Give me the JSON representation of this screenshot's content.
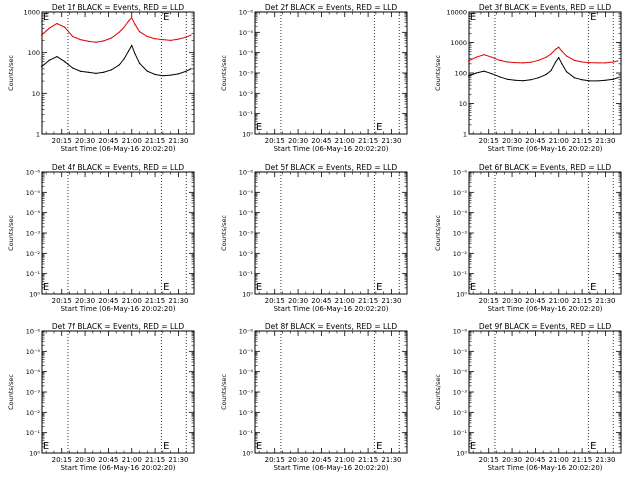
{
  "colors": {
    "events": "#000000",
    "lld": "#e00000",
    "background": "#ffffff",
    "axes": "#000000"
  },
  "x_tick_labels": [
    "20:15",
    "20:30",
    "20:45",
    "21:00",
    "21:15",
    "21:30"
  ],
  "x_axis_label": "Start Time (06-May-16 20:02:20)",
  "y_axis_label": "Counts/sec",
  "marker_label": "E",
  "chart_data": [
    {
      "type": "line",
      "title": "Det 1f BLACK = Events, RED = LLD",
      "ylabel": "Counts/sec",
      "xlabel": "Start Time (06-May-16 20:02:20)",
      "yscale": "log",
      "ylim": [
        1,
        1000
      ],
      "y_tick_labels": [
        "1",
        "10",
        "100",
        "1000"
      ],
      "x_ticks": [
        "20:15",
        "20:30",
        "20:45",
        "21:00",
        "21:15",
        "21:30"
      ],
      "vertical_dotted_lines": [
        "20:19",
        "21:19",
        "21:35"
      ],
      "series": [
        {
          "name": "LLD",
          "color": "#e00000",
          "x": [
            "20:02",
            "20:07",
            "20:12",
            "20:17",
            "20:22",
            "20:27",
            "20:32",
            "20:37",
            "20:42",
            "20:47",
            "20:52",
            "20:55",
            "20:58",
            "21:00",
            "21:02",
            "21:05",
            "21:10",
            "21:15",
            "21:20",
            "21:25",
            "21:30",
            "21:35",
            "21:38"
          ],
          "y": [
            270,
            400,
            520,
            420,
            250,
            210,
            190,
            180,
            195,
            230,
            320,
            420,
            600,
            720,
            500,
            330,
            250,
            220,
            210,
            200,
            215,
            240,
            270
          ]
        },
        {
          "name": "Events",
          "color": "#000000",
          "x": [
            "20:02",
            "20:07",
            "20:12",
            "20:17",
            "20:22",
            "20:27",
            "20:32",
            "20:37",
            "20:42",
            "20:47",
            "20:52",
            "20:55",
            "20:58",
            "21:00",
            "21:02",
            "21:05",
            "21:10",
            "21:15",
            "21:20",
            "21:25",
            "21:30",
            "21:35",
            "21:38"
          ],
          "y": [
            45,
            65,
            80,
            60,
            42,
            35,
            33,
            31,
            33,
            38,
            50,
            70,
            110,
            150,
            95,
            55,
            35,
            29,
            27,
            28,
            30,
            35,
            40
          ]
        }
      ]
    },
    {
      "type": "line",
      "title": "Det 2f BLACK = Events, RED = LLD",
      "ylabel": "Counts/sec",
      "xlabel": "Start Time (06-May-16 20:02:20)",
      "yscale": "log",
      "ylim": [
        1,
        1e-06
      ],
      "y_tick_labels": [
        "10⁰",
        "10⁻¹",
        "10⁻²",
        "10⁻³",
        "10⁻⁴",
        "10⁻⁵",
        "10⁻⁶"
      ],
      "x_ticks": [
        "20:15",
        "20:30",
        "20:45",
        "21:00",
        "21:15",
        "21:30"
      ],
      "vertical_dotted_lines": [
        "20:19",
        "21:19",
        "21:35"
      ],
      "series": []
    },
    {
      "type": "line",
      "title": "Det 3f BLACK = Events, RED = LLD",
      "ylabel": "Counts/sec",
      "xlabel": "Start Time (06-May-16 20:02:20)",
      "yscale": "log",
      "ylim": [
        1,
        10000
      ],
      "y_tick_labels": [
        "1",
        "10",
        "100",
        "1000",
        "10000"
      ],
      "x_ticks": [
        "20:15",
        "20:30",
        "20:45",
        "21:00",
        "21:15",
        "21:30"
      ],
      "vertical_dotted_lines": [
        "20:19",
        "21:19",
        "21:35"
      ],
      "series": [
        {
          "name": "LLD",
          "color": "#e00000",
          "x": [
            "20:02",
            "20:07",
            "20:12",
            "20:17",
            "20:22",
            "20:27",
            "20:32",
            "20:37",
            "20:42",
            "20:47",
            "20:52",
            "20:55",
            "20:58",
            "21:00",
            "21:02",
            "21:05",
            "21:10",
            "21:15",
            "21:20",
            "21:25",
            "21:30",
            "21:35",
            "21:38"
          ],
          "y": [
            250,
            330,
            400,
            330,
            260,
            230,
            220,
            215,
            225,
            260,
            330,
            420,
            600,
            700,
            520,
            360,
            260,
            230,
            220,
            215,
            215,
            230,
            250
          ]
        },
        {
          "name": "Events",
          "color": "#000000",
          "x": [
            "20:02",
            "20:07",
            "20:12",
            "20:17",
            "20:22",
            "20:27",
            "20:32",
            "20:37",
            "20:42",
            "20:47",
            "20:52",
            "20:55",
            "20:58",
            "21:00",
            "21:02",
            "21:05",
            "21:10",
            "21:15",
            "21:20",
            "21:25",
            "21:30",
            "21:35",
            "21:38"
          ],
          "y": [
            80,
            100,
            115,
            95,
            75,
            62,
            58,
            56,
            60,
            70,
            90,
            120,
            230,
            320,
            200,
            110,
            70,
            60,
            55,
            55,
            58,
            62,
            70
          ]
        }
      ]
    },
    {
      "type": "line",
      "title": "Det 4f BLACK = Events, RED = LLD",
      "ylabel": "Counts/sec",
      "xlabel": "Start Time (06-May-16 20:02:20)",
      "yscale": "log",
      "ylim": [
        1,
        1e-06
      ],
      "y_tick_labels": [
        "10⁰",
        "10⁻¹",
        "10⁻²",
        "10⁻³",
        "10⁻⁴",
        "10⁻⁵",
        "10⁻⁶"
      ],
      "x_ticks": [
        "20:15",
        "20:30",
        "20:45",
        "21:00",
        "21:15",
        "21:30"
      ],
      "vertical_dotted_lines": [
        "20:19",
        "21:19",
        "21:35"
      ],
      "series": []
    },
    {
      "type": "line",
      "title": "Det 5f BLACK = Events, RED = LLD",
      "ylabel": "Counts/sec",
      "xlabel": "Start Time (06-May-16 20:02:20)",
      "yscale": "log",
      "ylim": [
        1,
        1e-06
      ],
      "y_tick_labels": [
        "10⁰",
        "10⁻¹",
        "10⁻²",
        "10⁻³",
        "10⁻⁴",
        "10⁻⁵",
        "10⁻⁶"
      ],
      "x_ticks": [
        "20:15",
        "20:30",
        "20:45",
        "21:00",
        "21:15",
        "21:30"
      ],
      "vertical_dotted_lines": [
        "20:19",
        "21:19",
        "21:35"
      ],
      "series": []
    },
    {
      "type": "line",
      "title": "Det 6f BLACK = Events, RED = LLD",
      "ylabel": "Counts/sec",
      "xlabel": "Start Time (06-May-16 20:02:20)",
      "yscale": "log",
      "ylim": [
        1,
        1e-06
      ],
      "y_tick_labels": [
        "10⁰",
        "10⁻¹",
        "10⁻²",
        "10⁻³",
        "10⁻⁴",
        "10⁻⁵",
        "10⁻⁶"
      ],
      "x_ticks": [
        "20:15",
        "20:30",
        "20:45",
        "21:00",
        "21:15",
        "21:30"
      ],
      "vertical_dotted_lines": [
        "20:19",
        "21:19",
        "21:35"
      ],
      "series": []
    },
    {
      "type": "line",
      "title": "Det 7f BLACK = Events, RED = LLD",
      "ylabel": "Counts/sec",
      "xlabel": "Start Time (06-May-16 20:02:20)",
      "yscale": "log",
      "ylim": [
        1,
        1e-06
      ],
      "y_tick_labels": [
        "10⁰",
        "10⁻¹",
        "10⁻²",
        "10⁻³",
        "10⁻⁴",
        "10⁻⁵",
        "10⁻⁶"
      ],
      "x_ticks": [
        "20:15",
        "20:30",
        "20:45",
        "21:00",
        "21:15",
        "21:30"
      ],
      "vertical_dotted_lines": [
        "20:19",
        "21:19",
        "21:35"
      ],
      "series": []
    },
    {
      "type": "line",
      "title": "Det 8f BLACK = Events, RED = LLD",
      "ylabel": "Counts/sec",
      "xlabel": "Start Time (06-May-16 20:02:20)",
      "yscale": "log",
      "ylim": [
        1,
        1e-06
      ],
      "y_tick_labels": [
        "10⁰",
        "10⁻¹",
        "10⁻²",
        "10⁻³",
        "10⁻⁴",
        "10⁻⁵",
        "10⁻⁶"
      ],
      "x_ticks": [
        "20:15",
        "20:30",
        "20:45",
        "21:00",
        "21:15",
        "21:30"
      ],
      "vertical_dotted_lines": [
        "20:19",
        "21:19",
        "21:35"
      ],
      "series": []
    },
    {
      "type": "line",
      "title": "Det 9f BLACK = Events, RED = LLD",
      "ylabel": "Counts/sec",
      "xlabel": "Start Time (06-May-16 20:02:20)",
      "yscale": "log",
      "ylim": [
        1,
        1e-06
      ],
      "y_tick_labels": [
        "10⁰",
        "10⁻¹",
        "10⁻²",
        "10⁻³",
        "10⁻⁴",
        "10⁻⁵",
        "10⁻⁶"
      ],
      "x_ticks": [
        "20:15",
        "20:30",
        "20:45",
        "21:00",
        "21:15",
        "21:30"
      ],
      "vertical_dotted_lines": [
        "20:19",
        "21:19",
        "21:35"
      ],
      "series": []
    }
  ]
}
